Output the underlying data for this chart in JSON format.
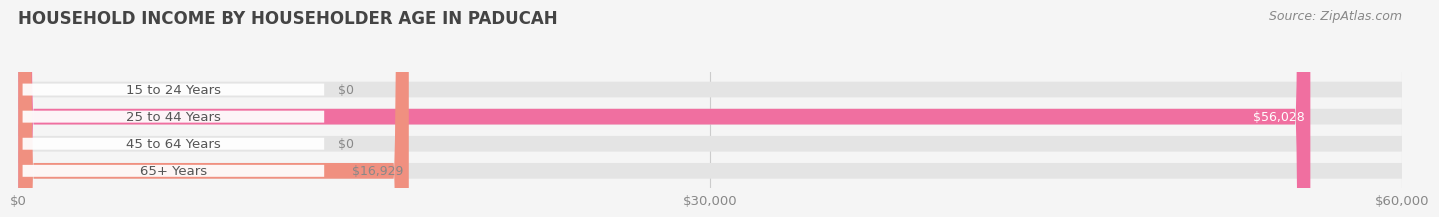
{
  "title": "HOUSEHOLD INCOME BY HOUSEHOLDER AGE IN PADUCAH",
  "source": "Source: ZipAtlas.com",
  "categories": [
    "15 to 24 Years",
    "25 to 44 Years",
    "45 to 64 Years",
    "65+ Years"
  ],
  "values": [
    0,
    56028,
    0,
    16929
  ],
  "bar_colors": [
    "#aab4d8",
    "#f06fa0",
    "#f0c896",
    "#f09080"
  ],
  "label_colors": [
    "#888888",
    "#ffffff",
    "#888888",
    "#888888"
  ],
  "value_labels": [
    "$0",
    "$56,028",
    "$0",
    "$16,929"
  ],
  "xmax": 60000,
  "xtick_vals": [
    0,
    30000,
    60000
  ],
  "xtick_labels": [
    "$0",
    "$30,000",
    "$60,000"
  ],
  "bg_color": "#f5f5f5",
  "bar_bg_color": "#e4e4e4",
  "title_color": "#444444",
  "source_color": "#888888",
  "title_fontsize": 12,
  "label_fontsize": 9.5,
  "value_fontsize": 9,
  "source_fontsize": 9
}
